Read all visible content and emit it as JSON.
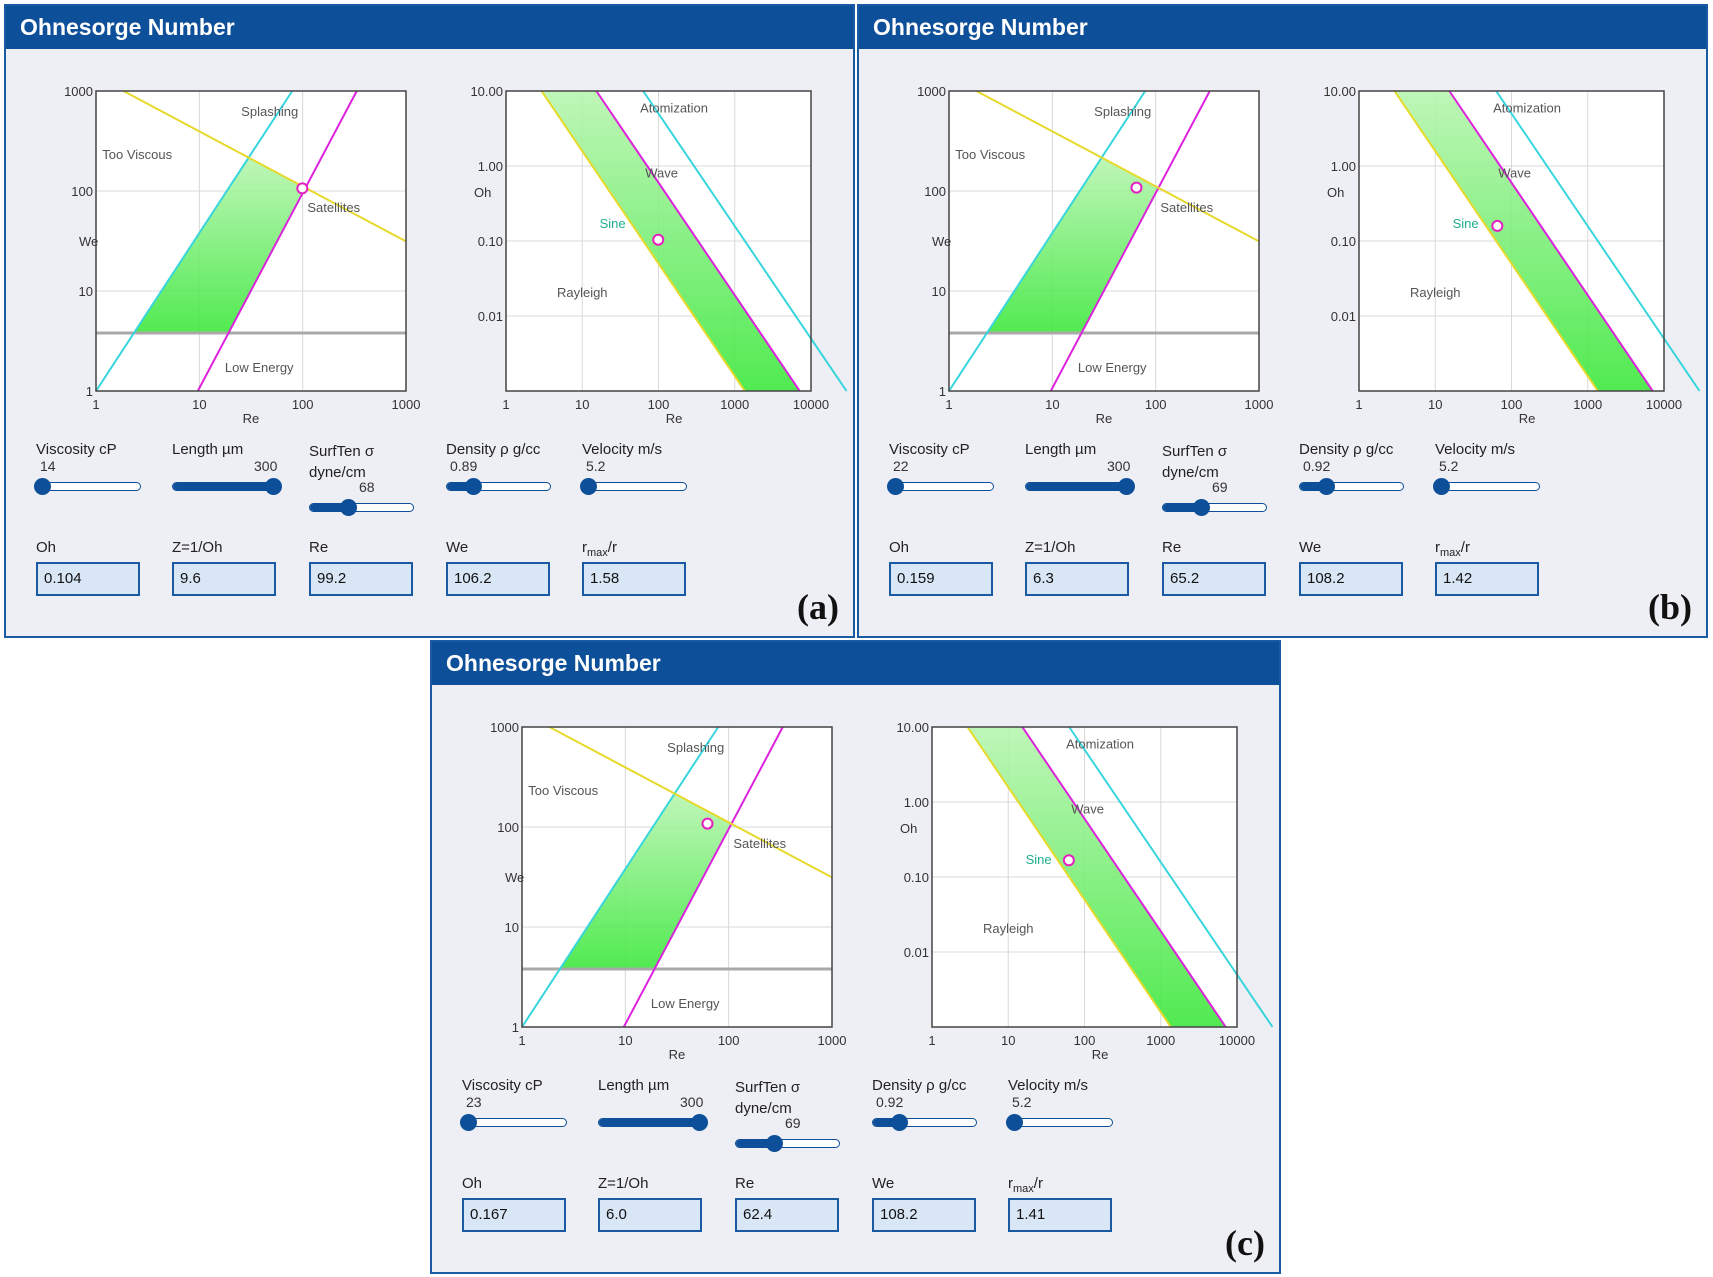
{
  "panels": [
    {
      "title": "Ohnesorge Number",
      "tag": "(a)",
      "we_chart": {
        "ylabel": "We",
        "xlabel": "Re",
        "x_ticks": [
          "1",
          "10",
          "100",
          "1000"
        ],
        "y_ticks": [
          "1",
          "10",
          "100",
          "1000"
        ],
        "regions": [
          "Splashing",
          "Too Viscous",
          "Satellites",
          "Low Energy"
        ],
        "point": {
          "re": 99.2,
          "we": 106.2
        }
      },
      "oh_chart": {
        "ylabel": "Oh",
        "xlabel": "Re",
        "x_ticks": [
          "1",
          "10",
          "100",
          "1000",
          "10000"
        ],
        "y_ticks": [
          "0.01",
          "0.10",
          "1.00",
          "10.00"
        ],
        "regions": [
          "Atomization",
          "Wave",
          "Sine",
          "Rayleigh"
        ],
        "point": {
          "re": 99.2,
          "oh": 0.104
        }
      },
      "sliders": [
        {
          "label": "Viscosity cP",
          "value": "14",
          "level": 0.05
        },
        {
          "label": "Length µm",
          "value": "300",
          "level": 0.97
        },
        {
          "label": "SurfTen σ\ndyne/cm",
          "value": "68",
          "level": 0.37
        },
        {
          "label": "Density ρ g/cc",
          "value": "0.89",
          "level": 0.25
        },
        {
          "label": "Velocity m/s",
          "value": "5.2",
          "level": 0.05
        }
      ],
      "results": [
        {
          "label": "Oh",
          "value": "0.104"
        },
        {
          "label": "Z=1/Oh",
          "value": "9.6"
        },
        {
          "label": "Re",
          "value": "99.2"
        },
        {
          "label": "We",
          "value": "106.2"
        },
        {
          "label": "rmax/r",
          "value": "1.58"
        }
      ]
    },
    {
      "title": "Ohnesorge Number",
      "tag": "(b)",
      "we_chart": {
        "ylabel": "We",
        "xlabel": "Re",
        "x_ticks": [
          "1",
          "10",
          "100",
          "1000"
        ],
        "y_ticks": [
          "1",
          "10",
          "100",
          "1000"
        ],
        "regions": [
          "Splashing",
          "Too Viscous",
          "Satellites",
          "Low Energy"
        ],
        "point": {
          "re": 65.2,
          "we": 108.2
        }
      },
      "oh_chart": {
        "ylabel": "Oh",
        "xlabel": "Re",
        "x_ticks": [
          "1",
          "10",
          "100",
          "1000",
          "10000"
        ],
        "y_ticks": [
          "0.01",
          "0.10",
          "1.00",
          "10.00"
        ],
        "regions": [
          "Atomization",
          "Wave",
          "Sine",
          "Rayleigh"
        ],
        "point": {
          "re": 65.2,
          "oh": 0.159
        }
      },
      "sliders": [
        {
          "label": "Viscosity cP",
          "value": "22",
          "level": 0.05
        },
        {
          "label": "Length µm",
          "value": "300",
          "level": 0.97
        },
        {
          "label": "SurfTen σ\ndyne/cm",
          "value": "69",
          "level": 0.37
        },
        {
          "label": "Density ρ g/cc",
          "value": "0.92",
          "level": 0.25
        },
        {
          "label": "Velocity m/s",
          "value": "5.2",
          "level": 0.05
        }
      ],
      "results": [
        {
          "label": "Oh",
          "value": "0.159"
        },
        {
          "label": "Z=1/Oh",
          "value": "6.3"
        },
        {
          "label": "Re",
          "value": "65.2"
        },
        {
          "label": "We",
          "value": "108.2"
        },
        {
          "label": "rmax/r",
          "value": "1.42"
        }
      ]
    },
    {
      "title": "Ohnesorge Number",
      "tag": "(c)",
      "we_chart": {
        "ylabel": "We",
        "xlabel": "Re",
        "x_ticks": [
          "1",
          "10",
          "100",
          "1000"
        ],
        "y_ticks": [
          "1",
          "10",
          "100",
          "1000"
        ],
        "regions": [
          "Splashing",
          "Too Viscous",
          "Satellites",
          "Low Energy"
        ],
        "point": {
          "re": 62.4,
          "we": 108.2
        }
      },
      "oh_chart": {
        "ylabel": "Oh",
        "xlabel": "Re",
        "x_ticks": [
          "1",
          "10",
          "100",
          "1000",
          "10000"
        ],
        "y_ticks": [
          "0.01",
          "0.10",
          "1.00",
          "10.00"
        ],
        "regions": [
          "Atomization",
          "Wave",
          "Sine",
          "Rayleigh"
        ],
        "point": {
          "re": 62.4,
          "oh": 0.167
        }
      },
      "sliders": [
        {
          "label": "Viscosity cP",
          "value": "23",
          "level": 0.05
        },
        {
          "label": "Length µm",
          "value": "300",
          "level": 0.97
        },
        {
          "label": "SurfTen σ\ndyne/cm",
          "value": "69",
          "level": 0.37
        },
        {
          "label": "Density ρ g/cc",
          "value": "0.92",
          "level": 0.25
        },
        {
          "label": "Velocity m/s",
          "value": "5.2",
          "level": 0.05
        }
      ],
      "results": [
        {
          "label": "Oh",
          "value": "0.167"
        },
        {
          "label": "Z=1/Oh",
          "value": "6.0"
        },
        {
          "label": "Re",
          "value": "62.4"
        },
        {
          "label": "We",
          "value": "108.2"
        },
        {
          "label": "rmax/r",
          "value": "1.41"
        }
      ]
    }
  ],
  "colors": {
    "header": "#0d4f98",
    "region_fill": "#66ee66",
    "cyan_line": "#38d6dc",
    "magenta_line": "#dd22dd",
    "yellow_line": "#e6d92a",
    "threshold_line": "#a9a9a9",
    "point": "#e61fbf"
  }
}
